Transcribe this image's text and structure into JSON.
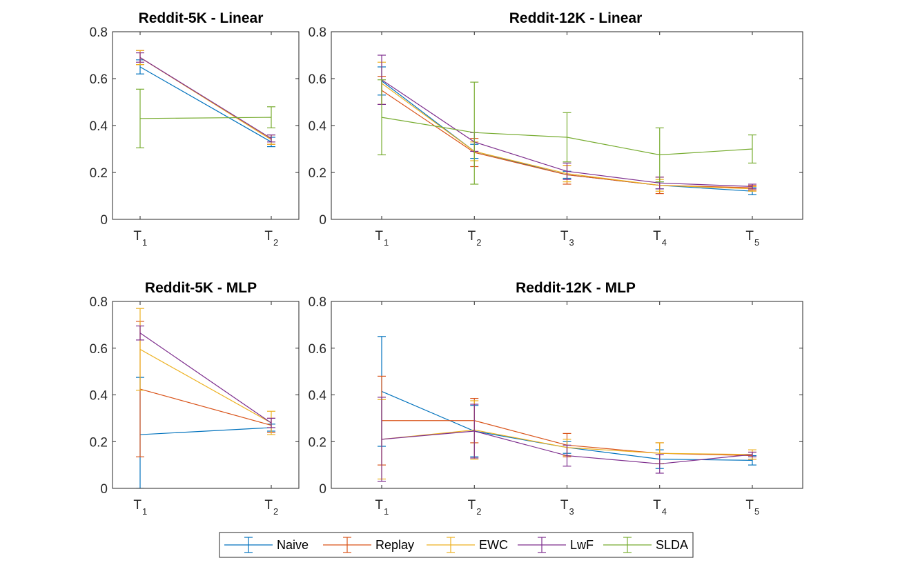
{
  "series_styles": [
    {
      "name": "Naive",
      "color": "#0072BD"
    },
    {
      "name": "Replay",
      "color": "#D95319"
    },
    {
      "name": "EWC",
      "color": "#EDB120"
    },
    {
      "name": "LwF",
      "color": "#7E2F8E"
    },
    {
      "name": "SLDA",
      "color": "#77AC30"
    }
  ],
  "legend": {
    "placement": "bottom-center",
    "entries": [
      "Naive",
      "Replay",
      "EWC",
      "LwF",
      "SLDA"
    ]
  },
  "chart_data": [
    {
      "type": "line",
      "title": "Reddit-5K - Linear",
      "categories": [
        [
          "T",
          "1"
        ],
        [
          "T",
          "2"
        ]
      ],
      "xlabel": "",
      "ylabel": "",
      "ylim": [
        0,
        0.8
      ],
      "yticks": [
        "0",
        "0.2",
        "0.4",
        "0.6",
        "0.8"
      ],
      "grid": false,
      "series": [
        {
          "name": "Naive",
          "values": [
            0.65,
            0.33
          ],
          "lower": [
            0.62,
            0.31
          ],
          "upper": [
            0.68,
            0.35
          ]
        },
        {
          "name": "Replay",
          "values": [
            0.69,
            0.34
          ],
          "lower": [
            0.66,
            0.32
          ],
          "upper": [
            0.72,
            0.36
          ]
        },
        {
          "name": "EWC",
          "values": [
            0.69,
            0.34
          ],
          "lower": [
            0.66,
            0.32
          ],
          "upper": [
            0.72,
            0.36
          ]
        },
        {
          "name": "LwF",
          "values": [
            0.69,
            0.345
          ],
          "lower": [
            0.67,
            0.33
          ],
          "upper": [
            0.71,
            0.36
          ]
        },
        {
          "name": "SLDA",
          "values": [
            0.43,
            0.435
          ],
          "lower": [
            0.305,
            0.39
          ],
          "upper": [
            0.555,
            0.48
          ]
        }
      ]
    },
    {
      "type": "line",
      "title": "Reddit-12K - Linear",
      "categories": [
        [
          "T",
          "1"
        ],
        [
          "T",
          "2"
        ],
        [
          "T",
          "3"
        ],
        [
          "T",
          "4"
        ],
        [
          "T",
          "5"
        ]
      ],
      "xlabel": "",
      "ylabel": "",
      "ylim": [
        0,
        0.8
      ],
      "yticks": [
        "0",
        "0.2",
        "0.4",
        "0.6",
        "0.8"
      ],
      "grid": false,
      "series": [
        {
          "name": "Naive",
          "values": [
            0.59,
            0.29,
            0.19,
            0.145,
            0.12
          ],
          "lower": [
            0.53,
            0.26,
            0.175,
            0.13,
            0.105
          ],
          "upper": [
            0.65,
            0.32,
            0.205,
            0.16,
            0.135
          ]
        },
        {
          "name": "Replay",
          "values": [
            0.55,
            0.285,
            0.19,
            0.145,
            0.135
          ],
          "lower": [
            0.49,
            0.225,
            0.15,
            0.11,
            0.125
          ],
          "upper": [
            0.61,
            0.345,
            0.23,
            0.18,
            0.145
          ]
        },
        {
          "name": "EWC",
          "values": [
            0.58,
            0.29,
            0.195,
            0.145,
            0.13
          ],
          "lower": [
            0.49,
            0.25,
            0.16,
            0.12,
            0.12
          ],
          "upper": [
            0.67,
            0.33,
            0.23,
            0.17,
            0.14
          ]
        },
        {
          "name": "LwF",
          "values": [
            0.595,
            0.33,
            0.205,
            0.155,
            0.14
          ],
          "lower": [
            0.49,
            0.29,
            0.17,
            0.13,
            0.13
          ],
          "upper": [
            0.7,
            0.37,
            0.24,
            0.18,
            0.15
          ]
        },
        {
          "name": "SLDA",
          "values": [
            0.435,
            0.37,
            0.35,
            0.275,
            0.3
          ],
          "lower": [
            0.275,
            0.15,
            0.245,
            0.16,
            0.24
          ],
          "upper": [
            0.595,
            0.585,
            0.455,
            0.39,
            0.36
          ]
        }
      ]
    },
    {
      "type": "line",
      "title": "Reddit-5K - MLP",
      "categories": [
        [
          "T",
          "1"
        ],
        [
          "T",
          "2"
        ]
      ],
      "xlabel": "",
      "ylabel": "",
      "ylim": [
        0,
        0.8
      ],
      "yticks": [
        "0",
        "0.2",
        "0.4",
        "0.6",
        "0.8"
      ],
      "grid": false,
      "series": [
        {
          "name": "Naive",
          "values": [
            0.23,
            0.26
          ],
          "lower": [
            0.0,
            0.245
          ],
          "upper": [
            0.475,
            0.275
          ]
        },
        {
          "name": "Replay",
          "values": [
            0.425,
            0.27
          ],
          "lower": [
            0.135,
            0.24
          ],
          "upper": [
            0.715,
            0.3
          ]
        },
        {
          "name": "EWC",
          "values": [
            0.595,
            0.28
          ],
          "lower": [
            0.42,
            0.23
          ],
          "upper": [
            0.77,
            0.33
          ]
        },
        {
          "name": "LwF",
          "values": [
            0.665,
            0.28
          ],
          "lower": [
            0.635,
            0.26
          ],
          "upper": [
            0.695,
            0.3
          ]
        },
        {
          "name": "SLDA",
          "values": [
            0.0,
            0.0
          ],
          "lower": [
            0.0,
            0.0
          ],
          "upper": [
            0.0,
            0.0
          ],
          "hidden": true
        }
      ]
    },
    {
      "type": "line",
      "title": "Reddit-12K - MLP",
      "categories": [
        [
          "T",
          "1"
        ],
        [
          "T",
          "2"
        ],
        [
          "T",
          "3"
        ],
        [
          "T",
          "4"
        ],
        [
          "T",
          "5"
        ]
      ],
      "xlabel": "",
      "ylabel": "",
      "ylim": [
        0,
        0.8
      ],
      "yticks": [
        "0",
        "0.2",
        "0.4",
        "0.6",
        "0.8"
      ],
      "grid": false,
      "series": [
        {
          "name": "Naive",
          "values": [
            0.415,
            0.245,
            0.175,
            0.125,
            0.12
          ],
          "lower": [
            0.18,
            0.135,
            0.15,
            0.085,
            0.1
          ],
          "upper": [
            0.65,
            0.355,
            0.2,
            0.165,
            0.14
          ]
        },
        {
          "name": "Replay",
          "values": [
            0.29,
            0.29,
            0.185,
            0.15,
            0.14
          ],
          "lower": [
            0.1,
            0.195,
            0.135,
            0.105,
            0.125
          ],
          "upper": [
            0.48,
            0.385,
            0.235,
            0.195,
            0.155
          ]
        },
        {
          "name": "EWC",
          "values": [
            0.21,
            0.25,
            0.175,
            0.15,
            0.145
          ],
          "lower": [
            0.04,
            0.125,
            0.14,
            0.105,
            0.125
          ],
          "upper": [
            0.38,
            0.375,
            0.21,
            0.195,
            0.165
          ]
        },
        {
          "name": "LwF",
          "values": [
            0.21,
            0.245,
            0.14,
            0.105,
            0.145
          ],
          "lower": [
            0.03,
            0.13,
            0.095,
            0.065,
            0.135
          ],
          "upper": [
            0.39,
            0.36,
            0.185,
            0.145,
            0.155
          ]
        },
        {
          "name": "SLDA",
          "values": [
            0.0,
            0.0,
            0.0,
            0.0,
            0.0
          ],
          "lower": [
            0,
            0,
            0,
            0,
            0
          ],
          "upper": [
            0,
            0,
            0,
            0,
            0
          ],
          "hidden": true
        }
      ]
    }
  ]
}
